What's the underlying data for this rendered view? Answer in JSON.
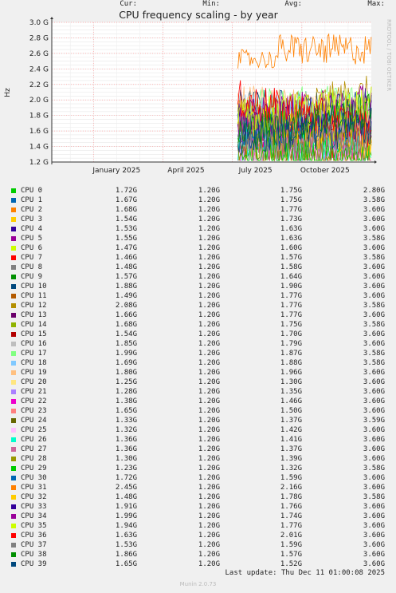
{
  "chart_data": {
    "type": "line",
    "title": "CPU frequency scaling - by year",
    "ylabel": "Hz",
    "side_label": "RRDTOOL / TOBI OETIKER",
    "y_ticks": [
      "1.2 G",
      "1.4 G",
      "1.6 G",
      "1.8 G",
      "2.0 G",
      "2.2 G",
      "2.4 G",
      "2.6 G",
      "2.8 G",
      "3.0 G"
    ],
    "y_tick_values": [
      1.2,
      1.4,
      1.6,
      1.8,
      2.0,
      2.2,
      2.4,
      2.6,
      2.8,
      3.0
    ],
    "ylim": [
      1.2,
      3.0
    ],
    "x_ticks": [
      "January 2025",
      "April 2025",
      "July 2025",
      "October 2025"
    ],
    "x_tick_positions": [
      0.0,
      0.25,
      0.5,
      0.75
    ],
    "xlim": [
      -0.15,
      1.0
    ],
    "data_start": 0.52,
    "grid": true,
    "colors": [
      "#00cc00",
      "#0066b3",
      "#ff8000",
      "#ffcc00",
      "#330099",
      "#990099",
      "#ccff00",
      "#ff0000",
      "#808080",
      "#008f00",
      "#00487d",
      "#b35a00",
      "#b38f00",
      "#6b006b",
      "#8fb300",
      "#b30000",
      "#bebebe",
      "#80ff80",
      "#80c9ff",
      "#ffc080",
      "#ffe680",
      "#aa80ff",
      "#ee00cc",
      "#ff8080",
      "#666600",
      "#ffbfff",
      "#00ffcc",
      "#cc6699",
      "#999900",
      "#00cc00",
      "#0066b3",
      "#ff8000",
      "#ffcc00",
      "#330099",
      "#990099",
      "#ccff00",
      "#ff0000",
      "#808080",
      "#008f00",
      "#00487d"
    ],
    "columns": [
      "Cur:",
      "Min:",
      "Avg:",
      "Max:"
    ],
    "series": [
      {
        "name": "CPU 0",
        "cur": "1.72G",
        "min": "1.20G",
        "avg": "1.75G",
        "max": "2.80G"
      },
      {
        "name": "CPU 1",
        "cur": "1.67G",
        "min": "1.20G",
        "avg": "1.75G",
        "max": "3.58G"
      },
      {
        "name": "CPU 2",
        "cur": "1.68G",
        "min": "1.20G",
        "avg": "1.77G",
        "max": "3.60G"
      },
      {
        "name": "CPU 3",
        "cur": "1.54G",
        "min": "1.20G",
        "avg": "1.73G",
        "max": "3.60G"
      },
      {
        "name": "CPU 4",
        "cur": "1.53G",
        "min": "1.20G",
        "avg": "1.63G",
        "max": "3.60G"
      },
      {
        "name": "CPU 5",
        "cur": "1.55G",
        "min": "1.20G",
        "avg": "1.63G",
        "max": "3.58G"
      },
      {
        "name": "CPU 6",
        "cur": "1.47G",
        "min": "1.20G",
        "avg": "1.60G",
        "max": "3.60G"
      },
      {
        "name": "CPU 7",
        "cur": "1.46G",
        "min": "1.20G",
        "avg": "1.57G",
        "max": "3.58G"
      },
      {
        "name": "CPU 8",
        "cur": "1.48G",
        "min": "1.20G",
        "avg": "1.58G",
        "max": "3.60G"
      },
      {
        "name": "CPU 9",
        "cur": "1.57G",
        "min": "1.20G",
        "avg": "1.64G",
        "max": "3.60G"
      },
      {
        "name": "CPU 10",
        "cur": "1.88G",
        "min": "1.20G",
        "avg": "1.90G",
        "max": "3.60G"
      },
      {
        "name": "CPU 11",
        "cur": "1.49G",
        "min": "1.20G",
        "avg": "1.77G",
        "max": "3.60G"
      },
      {
        "name": "CPU 12",
        "cur": "2.08G",
        "min": "1.20G",
        "avg": "1.77G",
        "max": "3.58G"
      },
      {
        "name": "CPU 13",
        "cur": "1.66G",
        "min": "1.20G",
        "avg": "1.77G",
        "max": "3.60G"
      },
      {
        "name": "CPU 14",
        "cur": "1.68G",
        "min": "1.20G",
        "avg": "1.75G",
        "max": "3.58G"
      },
      {
        "name": "CPU 15",
        "cur": "1.54G",
        "min": "1.20G",
        "avg": "1.70G",
        "max": "3.60G"
      },
      {
        "name": "CPU 16",
        "cur": "1.85G",
        "min": "1.20G",
        "avg": "1.79G",
        "max": "3.60G"
      },
      {
        "name": "CPU 17",
        "cur": "1.99G",
        "min": "1.20G",
        "avg": "1.87G",
        "max": "3.58G"
      },
      {
        "name": "CPU 18",
        "cur": "1.69G",
        "min": "1.20G",
        "avg": "1.88G",
        "max": "3.58G"
      },
      {
        "name": "CPU 19",
        "cur": "1.80G",
        "min": "1.20G",
        "avg": "1.96G",
        "max": "3.60G"
      },
      {
        "name": "CPU 20",
        "cur": "1.25G",
        "min": "1.20G",
        "avg": "1.30G",
        "max": "3.60G"
      },
      {
        "name": "CPU 21",
        "cur": "1.28G",
        "min": "1.20G",
        "avg": "1.35G",
        "max": "3.60G"
      },
      {
        "name": "CPU 22",
        "cur": "1.38G",
        "min": "1.20G",
        "avg": "1.46G",
        "max": "3.60G"
      },
      {
        "name": "CPU 23",
        "cur": "1.65G",
        "min": "1.20G",
        "avg": "1.50G",
        "max": "3.60G"
      },
      {
        "name": "CPU 24",
        "cur": "1.33G",
        "min": "1.20G",
        "avg": "1.37G",
        "max": "3.59G"
      },
      {
        "name": "CPU 25",
        "cur": "1.32G",
        "min": "1.20G",
        "avg": "1.42G",
        "max": "3.60G"
      },
      {
        "name": "CPU 26",
        "cur": "1.36G",
        "min": "1.20G",
        "avg": "1.41G",
        "max": "3.60G"
      },
      {
        "name": "CPU 27",
        "cur": "1.36G",
        "min": "1.20G",
        "avg": "1.37G",
        "max": "3.60G"
      },
      {
        "name": "CPU 28",
        "cur": "1.30G",
        "min": "1.20G",
        "avg": "1.39G",
        "max": "3.60G"
      },
      {
        "name": "CPU 29",
        "cur": "1.23G",
        "min": "1.20G",
        "avg": "1.32G",
        "max": "3.58G"
      },
      {
        "name": "CPU 30",
        "cur": "1.72G",
        "min": "1.20G",
        "avg": "1.59G",
        "max": "3.60G"
      },
      {
        "name": "CPU 31",
        "cur": "2.45G",
        "min": "1.20G",
        "avg": "2.16G",
        "max": "3.60G"
      },
      {
        "name": "CPU 32",
        "cur": "1.48G",
        "min": "1.20G",
        "avg": "1.78G",
        "max": "3.58G"
      },
      {
        "name": "CPU 33",
        "cur": "1.91G",
        "min": "1.20G",
        "avg": "1.76G",
        "max": "3.60G"
      },
      {
        "name": "CPU 34",
        "cur": "1.99G",
        "min": "1.20G",
        "avg": "1.74G",
        "max": "3.60G"
      },
      {
        "name": "CPU 35",
        "cur": "1.94G",
        "min": "1.20G",
        "avg": "1.77G",
        "max": "3.60G"
      },
      {
        "name": "CPU 36",
        "cur": "1.63G",
        "min": "1.20G",
        "avg": "2.01G",
        "max": "3.60G"
      },
      {
        "name": "CPU 37",
        "cur": "1.53G",
        "min": "1.20G",
        "avg": "1.59G",
        "max": "3.60G"
      },
      {
        "name": "CPU 38",
        "cur": "1.86G",
        "min": "1.20G",
        "avg": "1.57G",
        "max": "3.60G"
      },
      {
        "name": "CPU 39",
        "cur": "1.65G",
        "min": "1.20G",
        "avg": "1.52G",
        "max": "3.60G"
      }
    ]
  },
  "footer": {
    "last_update": "Last update:  Thu Dec 11 01:00:08 2025",
    "munin_version": "Munin 2.0.73"
  }
}
